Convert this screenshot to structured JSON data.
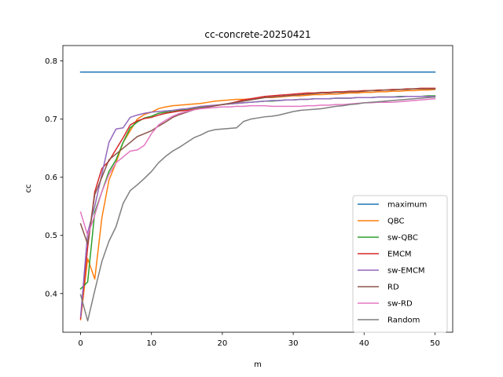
{
  "chart_data": {
    "type": "line",
    "title": "cc-concrete-20250421",
    "xlabel": "m",
    "ylabel": "cc",
    "xlim": [
      -2.5,
      52.5
    ],
    "ylim": [
      0.3335,
      0.8265
    ],
    "xticks": [
      0,
      10,
      20,
      30,
      40,
      50
    ],
    "yticks": [
      0.4,
      0.5,
      0.6,
      0.7,
      0.8
    ],
    "grid": false,
    "legend_position": "lower-right",
    "x": [
      0,
      1,
      2,
      3,
      4,
      5,
      6,
      7,
      8,
      9,
      10,
      11,
      12,
      13,
      14,
      15,
      16,
      17,
      18,
      19,
      20,
      21,
      22,
      23,
      24,
      25,
      26,
      27,
      28,
      29,
      30,
      31,
      32,
      33,
      34,
      35,
      36,
      37,
      38,
      39,
      40,
      41,
      42,
      43,
      44,
      45,
      46,
      47,
      48,
      49,
      50
    ],
    "series": [
      {
        "name": "maximum",
        "color": "#1f77b4",
        "values": [
          0.781,
          0.781,
          0.781,
          0.781,
          0.781,
          0.781,
          0.781,
          0.781,
          0.781,
          0.781,
          0.781,
          0.781,
          0.781,
          0.781,
          0.781,
          0.781,
          0.781,
          0.781,
          0.781,
          0.781,
          0.781,
          0.781,
          0.781,
          0.781,
          0.781,
          0.781,
          0.781,
          0.781,
          0.781,
          0.781,
          0.781,
          0.781,
          0.781,
          0.781,
          0.781,
          0.781,
          0.781,
          0.781,
          0.781,
          0.781,
          0.781,
          0.781,
          0.781,
          0.781,
          0.781,
          0.781,
          0.781,
          0.781,
          0.781,
          0.781,
          0.781
        ]
      },
      {
        "name": "QBC",
        "color": "#ff7f0e",
        "values": [
          0.355,
          0.46,
          0.425,
          0.53,
          0.595,
          0.625,
          0.66,
          0.68,
          0.7,
          0.708,
          0.712,
          0.718,
          0.721,
          0.723,
          0.724,
          0.725,
          0.726,
          0.727,
          0.729,
          0.731,
          0.732,
          0.733,
          0.734,
          0.734,
          0.735,
          0.736,
          0.737,
          0.737,
          0.738,
          0.739,
          0.74,
          0.74,
          0.741,
          0.742,
          0.742,
          0.743,
          0.743,
          0.744,
          0.745,
          0.745,
          0.746,
          0.746,
          0.747,
          0.747,
          0.748,
          0.748,
          0.749,
          0.749,
          0.75,
          0.75,
          0.751
        ]
      },
      {
        "name": "sw-QBC",
        "color": "#2ca02c",
        "values": [
          0.408,
          0.42,
          0.54,
          0.575,
          0.61,
          0.63,
          0.66,
          0.685,
          0.695,
          0.702,
          0.705,
          0.71,
          0.712,
          0.713,
          0.715,
          0.717,
          0.719,
          0.721,
          0.722,
          0.723,
          0.725,
          0.726,
          0.727,
          0.728,
          0.729,
          0.73,
          0.731,
          0.731,
          0.732,
          0.733,
          0.733,
          0.734,
          0.734,
          0.735,
          0.735,
          0.735,
          0.736,
          0.736,
          0.736,
          0.737,
          0.737,
          0.737,
          0.738,
          0.738,
          0.738,
          0.739,
          0.739,
          0.739,
          0.739,
          0.74,
          0.74
        ]
      },
      {
        "name": "EMCM",
        "color": "#d62728",
        "values": [
          0.357,
          0.48,
          0.575,
          0.615,
          0.628,
          0.648,
          0.668,
          0.69,
          0.697,
          0.701,
          0.703,
          0.707,
          0.71,
          0.712,
          0.714,
          0.715,
          0.717,
          0.719,
          0.721,
          0.723,
          0.725,
          0.727,
          0.73,
          0.733,
          0.735,
          0.737,
          0.739,
          0.74,
          0.741,
          0.742,
          0.743,
          0.744,
          0.745,
          0.745,
          0.746,
          0.746,
          0.747,
          0.747,
          0.748,
          0.748,
          0.749,
          0.749,
          0.75,
          0.75,
          0.751,
          0.751,
          0.752,
          0.752,
          0.753,
          0.753,
          0.753
        ]
      },
      {
        "name": "sw-EMCM",
        "color": "#9467bd",
        "values": [
          0.36,
          0.505,
          0.55,
          0.605,
          0.66,
          0.683,
          0.685,
          0.703,
          0.707,
          0.71,
          0.712,
          0.713,
          0.714,
          0.715,
          0.717,
          0.718,
          0.72,
          0.722,
          0.723,
          0.724,
          0.725,
          0.726,
          0.727,
          0.728,
          0.729,
          0.73,
          0.731,
          0.732,
          0.732,
          0.733,
          0.733,
          0.734,
          0.734,
          0.735,
          0.735,
          0.735,
          0.736,
          0.736,
          0.736,
          0.737,
          0.737,
          0.737,
          0.738,
          0.738,
          0.738,
          0.738,
          0.739,
          0.739,
          0.739,
          0.739,
          0.739
        ]
      },
      {
        "name": "RD",
        "color": "#8c564b",
        "values": [
          0.52,
          0.485,
          0.57,
          0.6,
          0.63,
          0.64,
          0.65,
          0.66,
          0.67,
          0.675,
          0.68,
          0.688,
          0.695,
          0.703,
          0.708,
          0.712,
          0.716,
          0.719,
          0.721,
          0.723,
          0.725,
          0.727,
          0.729,
          0.731,
          0.733,
          0.735,
          0.737,
          0.738,
          0.739,
          0.74,
          0.741,
          0.742,
          0.743,
          0.744,
          0.745,
          0.745,
          0.746,
          0.746,
          0.747,
          0.747,
          0.748,
          0.749,
          0.749,
          0.75,
          0.75,
          0.751,
          0.751,
          0.752,
          0.752,
          0.752,
          0.752
        ]
      },
      {
        "name": "sw-RD",
        "color": "#e377c2",
        "values": [
          0.54,
          0.5,
          0.535,
          0.575,
          0.605,
          0.625,
          0.635,
          0.645,
          0.647,
          0.655,
          0.675,
          0.69,
          0.698,
          0.705,
          0.71,
          0.713,
          0.716,
          0.718,
          0.719,
          0.72,
          0.721,
          0.721,
          0.722,
          0.722,
          0.723,
          0.723,
          0.723,
          0.722,
          0.722,
          0.722,
          0.722,
          0.722,
          0.723,
          0.723,
          0.724,
          0.724,
          0.725,
          0.725,
          0.726,
          0.727,
          0.728,
          0.728,
          0.729,
          0.729,
          0.729,
          0.73,
          0.731,
          0.732,
          0.733,
          0.734,
          0.735
        ]
      },
      {
        "name": "Random",
        "color": "#7f7f7f",
        "values": [
          0.398,
          0.353,
          0.405,
          0.455,
          0.49,
          0.515,
          0.555,
          0.577,
          0.587,
          0.598,
          0.61,
          0.625,
          0.636,
          0.645,
          0.652,
          0.66,
          0.668,
          0.673,
          0.679,
          0.682,
          0.683,
          0.684,
          0.685,
          0.696,
          0.7,
          0.702,
          0.704,
          0.705,
          0.707,
          0.71,
          0.713,
          0.715,
          0.716,
          0.717,
          0.718,
          0.72,
          0.722,
          0.723,
          0.725,
          0.726,
          0.728,
          0.729,
          0.73,
          0.731,
          0.732,
          0.733,
          0.734,
          0.735,
          0.736,
          0.737,
          0.738
        ]
      }
    ]
  }
}
